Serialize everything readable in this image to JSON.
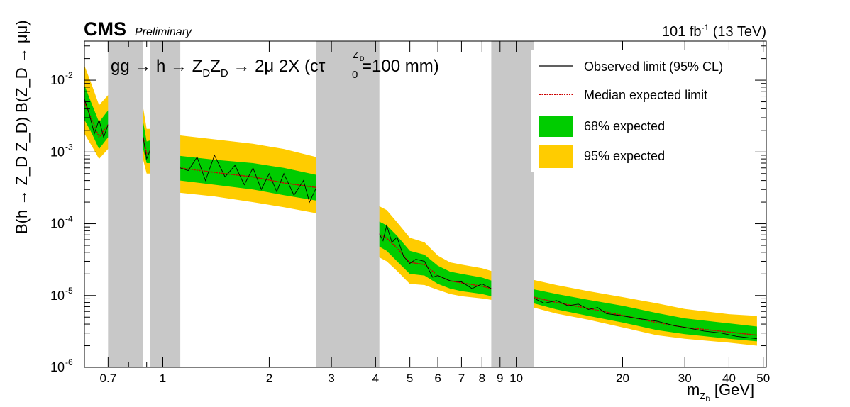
{
  "header": {
    "experiment": "CMS",
    "status": "Preliminary",
    "lumi": "101 fb",
    "lumi_exp": "-1",
    "energy": "(13 TeV)"
  },
  "process": {
    "main": "gg → h → Z",
    "sub1": "D",
    "mid": "Z",
    "sub2": "D",
    "decay": " → 2μ 2X (cτ",
    "tau_sub": "0",
    "tau_sup": "Z",
    "tau_sup_sub": "D",
    "tail": "=100 mm)"
  },
  "axes": {
    "x_main": "m",
    "x_sub_a": "Z",
    "x_sub_b": "D",
    "x_unit": " [GeV]",
    "y_label": "B(h → Z_D Z_D) B(Z_D → μμ)",
    "x_ticks": [
      "0.7",
      "1",
      "2",
      "3",
      "4",
      "5",
      "6",
      "7",
      "8",
      "9",
      "10",
      "20",
      "30",
      "40",
      "50"
    ],
    "y_ticks": [
      {
        "base": "10",
        "exp": "-2"
      },
      {
        "base": "10",
        "exp": "-3"
      },
      {
        "base": "10",
        "exp": "-4"
      },
      {
        "base": "10",
        "exp": "-5"
      },
      {
        "base": "10",
        "exp": "-6"
      }
    ]
  },
  "legend": {
    "observed": "Observed limit (95% CL)",
    "expected": "Median expected limit",
    "band68": "68% expected",
    "band95": "95% expected"
  },
  "colors": {
    "band68": "#00cc00",
    "band95": "#ffcc00",
    "observed": "#000000",
    "expected": "#cc0000",
    "veto": "#c8c8c8"
  },
  "chart_data": {
    "type": "line",
    "xscale": "log",
    "yscale": "log",
    "xlim": [
      0.6,
      51
    ],
    "ylim": [
      1e-06,
      0.035
    ],
    "grid": false,
    "legend_position": "top-right",
    "vetoed_regions": [
      [
        0.7,
        0.88
      ],
      [
        0.92,
        1.12
      ],
      [
        2.72,
        4.1
      ],
      [
        8.5,
        11.2
      ]
    ],
    "expected": {
      "x": [
        0.6,
        0.63,
        0.66,
        0.7,
        0.88,
        0.9,
        0.92,
        1.12,
        1.4,
        1.8,
        2.2,
        2.72,
        4.1,
        4.3,
        4.6,
        5.0,
        5.5,
        6.0,
        6.5,
        7.0,
        8.0,
        8.5,
        11.2,
        13,
        16,
        20,
        25,
        30,
        40,
        48
      ],
      "y": [
        0.005,
        0.0028,
        0.0016,
        0.0024,
        0.0016,
        0.00095,
        0.00105,
        0.0006,
        0.00052,
        0.00045,
        0.00037,
        0.00032,
        7.2e-05,
        6.3e-05,
        4.6e-05,
        2.9e-05,
        2.7e-05,
        1.9e-05,
        1.6e-05,
        1.5e-05,
        1.35e-05,
        1.25e-05,
        9.5e-06,
        8e-06,
        6.6e-06,
        5.3e-06,
        4.2e-06,
        3.6e-06,
        3.1e-06,
        2.8e-06
      ]
    },
    "band68": {
      "lo": [
        0.0028,
        0.0018,
        0.0011,
        0.0016,
        0.0011,
        0.0007,
        0.0007,
        0.0004,
        0.00035,
        0.0003,
        0.00025,
        0.00021,
        4.8e-05,
        4.2e-05,
        3e-05,
        2e-05,
        1.9e-05,
        1.45e-05,
        1.25e-05,
        1.15e-05,
        1.05e-05,
        9.8e-06,
        7.8e-06,
        6.4e-06,
        5.2e-06,
        4.2e-06,
        3.3e-06,
        2.9e-06,
        2.5e-06,
        2.3e-06
      ],
      "hi": [
        0.0085,
        0.0046,
        0.0026,
        0.0038,
        0.0026,
        0.0014,
        0.00145,
        0.00088,
        0.00078,
        0.0007,
        0.0006,
        0.00048,
        0.000107,
        9.5e-05,
        6.8e-05,
        4.2e-05,
        3.7e-05,
        2.6e-05,
        2.15e-05,
        2e-05,
        1.78e-05,
        1.62e-05,
        1.22e-05,
        1.05e-05,
        8.7e-06,
        7.2e-06,
        5.7e-06,
        4.8e-06,
        4.1e-06,
        3.7e-06
      ]
    },
    "band95": {
      "lo": [
        0.0018,
        0.0012,
        0.0008,
        0.0011,
        0.00078,
        0.0005,
        0.0005,
        0.00027,
        0.00024,
        0.0002,
        0.00017,
        0.00014,
        3.4e-05,
        3e-05,
        2.2e-05,
        1.45e-05,
        1.4e-05,
        1.2e-05,
        1.05e-05,
        9.8e-06,
        9.1e-06,
        8.7e-06,
        6.8e-06,
        5.6e-06,
        4.6e-06,
        3.6e-06,
        2.8e-06,
        2.5e-06,
        2.2e-06,
        2e-06
      ],
      "hi": [
        0.016,
        0.0085,
        0.0045,
        0.0062,
        0.0041,
        0.0021,
        0.0021,
        0.0017,
        0.0015,
        0.0013,
        0.0011,
        0.00085,
        0.000175,
        0.000155,
        0.000105,
        6.4e-05,
        5.5e-05,
        3.6e-05,
        2.9e-05,
        2.7e-05,
        2.4e-05,
        2.2e-05,
        1.65e-05,
        1.4e-05,
        1.15e-05,
        9.5e-06,
        7.8e-06,
        6.5e-06,
        5.5e-06,
        5.2e-06
      ]
    },
    "observed": {
      "x": [
        0.6,
        0.62,
        0.64,
        0.66,
        0.68,
        0.7,
        0.88,
        0.9,
        0.92,
        1.0,
        1.05,
        1.12,
        1.18,
        1.25,
        1.32,
        1.4,
        1.5,
        1.6,
        1.7,
        1.8,
        1.9,
        2.0,
        2.1,
        2.2,
        2.35,
        2.5,
        2.6,
        2.72,
        4.1,
        4.2,
        4.3,
        4.45,
        4.6,
        4.8,
        5.0,
        5.2,
        5.5,
        5.8,
        6.0,
        6.5,
        7.0,
        7.5,
        8.0,
        8.5,
        11.2,
        12,
        13,
        14,
        15,
        16,
        17,
        18,
        20,
        22,
        25,
        28,
        30,
        34,
        38,
        42,
        48
      ],
      "y": [
        0.0055,
        0.0033,
        0.0018,
        0.0028,
        0.0016,
        0.0024,
        0.0016,
        0.0008,
        0.00105,
        0.0006,
        0.00095,
        0.0006,
        0.00055,
        0.00085,
        0.0004,
        0.0009,
        0.00045,
        0.00065,
        0.00035,
        0.0006,
        0.0003,
        0.0005,
        0.00028,
        0.0005,
        0.00025,
        0.0004,
        0.0002,
        0.00032,
        7.2e-05,
        5.8e-05,
        9.5e-05,
        5.5e-05,
        6.5e-05,
        3.5e-05,
        2.8e-05,
        3.2e-05,
        3e-05,
        1.8e-05,
        1.9e-05,
        1.6e-05,
        1.55e-05,
        1.25e-05,
        1.45e-05,
        1.25e-05,
        9.2e-06,
        7.8e-06,
        8.5e-06,
        7.2e-06,
        7.6e-06,
        6.4e-06,
        6.8e-06,
        5.6e-06,
        5.2e-06,
        4.8e-06,
        4.4e-06,
        3.8e-06,
        3.6e-06,
        3.2e-06,
        3e-06,
        2.7e-06,
        2.5e-06
      ]
    }
  }
}
